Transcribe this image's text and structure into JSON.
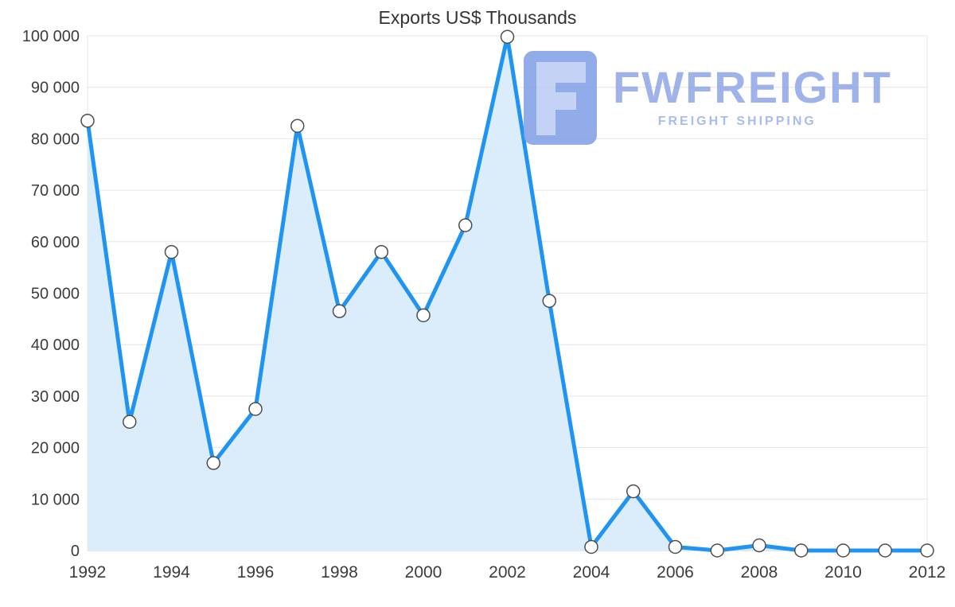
{
  "title": "Exports US$ Thousands",
  "logo": {
    "name": "FWFREIGHT",
    "tagline": "FREIGHT SHIPPING"
  },
  "chart_data": {
    "type": "area",
    "title": "Exports US$ Thousands",
    "xlabel": "",
    "ylabel": "",
    "x": [
      1992,
      1993,
      1994,
      1995,
      1996,
      1997,
      1998,
      1999,
      2000,
      2001,
      2002,
      2003,
      2004,
      2005,
      2006,
      2007,
      2008,
      2009,
      2010,
      2011,
      2012
    ],
    "values": [
      83500,
      25000,
      58000,
      17000,
      27500,
      82500,
      46500,
      58000,
      45700,
      63200,
      99800,
      48500,
      700,
      11500,
      700,
      0,
      1000,
      0,
      0,
      0,
      0
    ],
    "xticks": [
      1992,
      1994,
      1996,
      1998,
      2000,
      2002,
      2004,
      2006,
      2008,
      2010,
      2012
    ],
    "yticks": [
      0,
      10000,
      20000,
      30000,
      40000,
      50000,
      60000,
      70000,
      80000,
      90000,
      100000
    ],
    "ytick_labels": [
      "0",
      "10 000",
      "20 000",
      "30 000",
      "40 000",
      "50 000",
      "60 000",
      "70 000",
      "80 000",
      "90 000",
      "100 000"
    ],
    "ylim": [
      0,
      100000
    ],
    "grid": "horizontal",
    "legend": "none",
    "colors": {
      "line": "#2094f3",
      "fill": "#dbecfb",
      "marker_fill": "#ffffff",
      "marker_stroke": "#4d4d4d",
      "grid": "#e4e4e4",
      "axis": "#cfcfcf",
      "text": "#3c3c3c",
      "logo": "#92a9e8"
    }
  }
}
